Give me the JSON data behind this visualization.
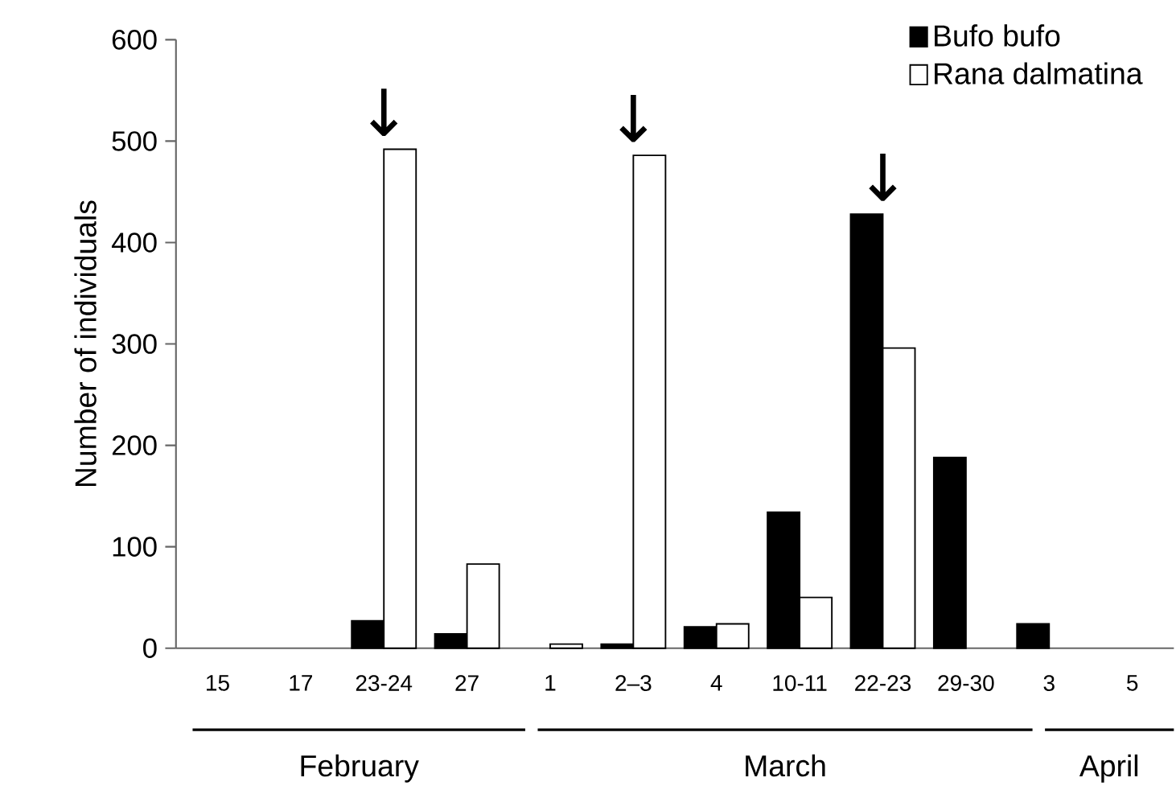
{
  "chart_data": {
    "type": "bar",
    "ylabel": "Number of individuals",
    "categories": [
      "15",
      "17",
      "23-24",
      "27",
      "1",
      "2–3",
      "4",
      "10-11",
      "22-23",
      "29-30",
      "3",
      "5"
    ],
    "series": [
      {
        "name": "Bufo bufo",
        "color": "#000000",
        "values": [
          null,
          null,
          27,
          14,
          null,
          4,
          21,
          134,
          428,
          188,
          24,
          null
        ]
      },
      {
        "name": "Rana dalmatina",
        "color": "#ffffff",
        "values": [
          null,
          null,
          492,
          83,
          4,
          486,
          24,
          50,
          296,
          null,
          null,
          null
        ]
      }
    ],
    "ylim": [
      0,
      600
    ],
    "yticks": [
      0,
      100,
      200,
      300,
      400,
      500,
      600
    ],
    "legend": "top right",
    "grid": false,
    "annotations": [
      "February",
      "March",
      "April",
      {
        "text": "↓",
        "x": "23-24",
        "y": 492
      },
      {
        "text": "↓",
        "x": "2–3",
        "y": 486
      },
      {
        "text": "↓",
        "x": "22-23",
        "y": 428
      }
    ]
  }
}
